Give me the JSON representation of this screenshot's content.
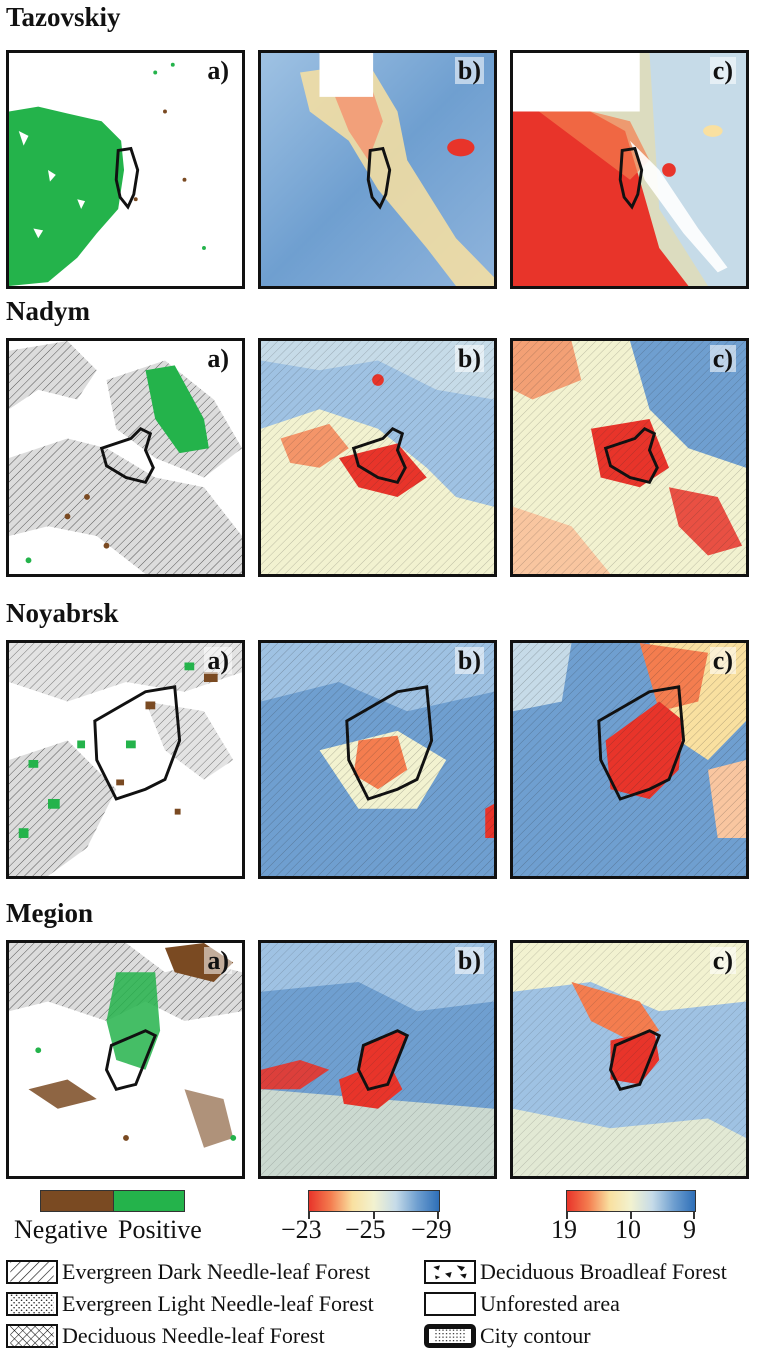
{
  "cities": [
    {
      "name": "Tazovskiy"
    },
    {
      "name": "Nadym"
    },
    {
      "name": "Noyabrsk"
    },
    {
      "name": "Megion"
    }
  ],
  "panel_labels": [
    "a)",
    "b)",
    "c)"
  ],
  "colorbars": {
    "trend": {
      "negative_label": "Negative",
      "positive_label": "Positive",
      "negative_color": "#7a4a22",
      "positive_color": "#24b34b"
    },
    "temperature_b": {
      "ticks": [
        "−23",
        "−25",
        "−29"
      ],
      "low_color": "#e8342a",
      "high_color": "#2e6fb8"
    },
    "temperature_c": {
      "ticks": [
        "19",
        "10",
        "9"
      ],
      "low_color": "#e8342a",
      "high_color": "#2e6fb8"
    }
  },
  "legend": {
    "items": [
      {
        "label": "Evergreen Dark Needle-leaf Forest",
        "pattern": "diagonal-hatch"
      },
      {
        "label": "Deciduous Broadleaf Forest",
        "pattern": "blotches"
      },
      {
        "label": "Evergreen Light Needle-leaf Forest",
        "pattern": "dots"
      },
      {
        "label": "Unforested area",
        "pattern": "blank"
      },
      {
        "label": "Deciduous Needle-leaf Forest",
        "pattern": "cross-hatch"
      },
      {
        "label": "City contour",
        "pattern": "city-contour"
      }
    ]
  }
}
